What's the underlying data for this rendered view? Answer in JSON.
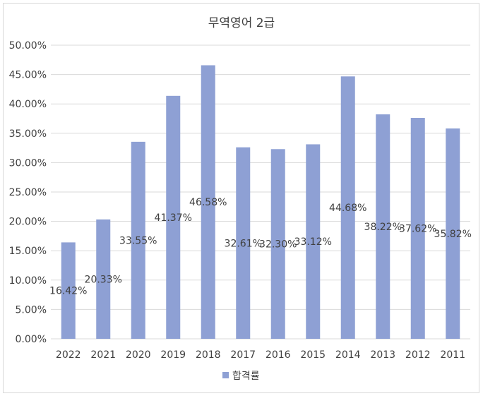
{
  "chart_data": {
    "type": "bar",
    "title": "무역영어 2급",
    "categories": [
      "2022",
      "2021",
      "2020",
      "2019",
      "2018",
      "2017",
      "2016",
      "2015",
      "2014",
      "2013",
      "2012",
      "2011"
    ],
    "series": [
      {
        "name": "합격률",
        "values": [
          16.42,
          20.33,
          33.55,
          41.37,
          46.58,
          32.61,
          32.3,
          33.12,
          44.68,
          38.22,
          37.62,
          35.82
        ],
        "labels": [
          "16.42%",
          "20.33%",
          "33.55%",
          "41.37%",
          "46.58%",
          "32.61%",
          "32.30%",
          "33.12%",
          "44.68%",
          "38.22%",
          "37.62%",
          "35.82%"
        ],
        "color": "#8ea0d4"
      }
    ],
    "ylim": [
      0,
      50
    ],
    "yticks": [
      "0.00%",
      "5.00%",
      "10.00%",
      "15.00%",
      "20.00%",
      "25.00%",
      "30.00%",
      "35.00%",
      "40.00%",
      "45.00%",
      "50.00%"
    ],
    "xlabel": "",
    "ylabel": "",
    "grid": true,
    "legend_position": "bottom",
    "gridline_color": "#d9d9d9",
    "text_color": "#404040"
  }
}
